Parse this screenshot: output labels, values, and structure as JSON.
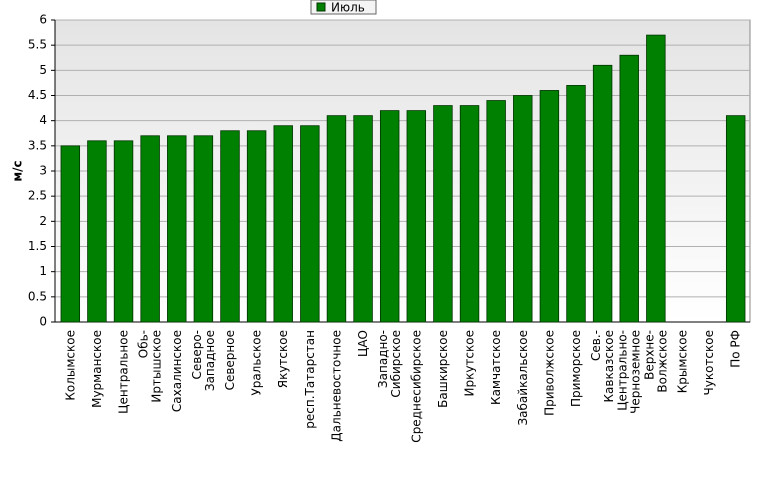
{
  "chart_data": {
    "type": "bar",
    "y_label": "м/с",
    "categories": [
      "Колымское",
      "Мурманское",
      "Центральное",
      "Обь-Иртышское",
      "Сахалинское",
      "Северо-Западное",
      "Северное",
      "Уральское",
      "Якутское",
      "респ.Татарстан",
      "Дальневосточное",
      "ЦАО",
      "Западно-Сибирское",
      "Среднесибирское",
      "Башкирское",
      "Иркутское",
      "Камчатское",
      "Забайкальское",
      "Приволжское",
      "Приморское",
      "Сев.-Кавказское",
      "Центрально-Черноземное",
      "Верхне-Волжское",
      "Крымское",
      "Чукотское",
      "По РФ"
    ],
    "series": [
      {
        "name": "Июль",
        "color": "#008000",
        "values": [
          3.5,
          3.6,
          3.6,
          3.7,
          3.7,
          3.7,
          3.8,
          3.8,
          3.9,
          3.9,
          4.1,
          4.1,
          4.2,
          4.2,
          4.3,
          4.3,
          4.4,
          4.5,
          4.6,
          4.7,
          5.1,
          5.3,
          5.7,
          null,
          null,
          4.1
        ]
      }
    ],
    "ylim": [
      0,
      6
    ],
    "yticks": [
      0,
      0.5,
      1,
      1.5,
      2,
      2.5,
      3,
      3.5,
      4,
      4.5,
      5,
      5.5,
      6
    ],
    "grid": true,
    "legend": "top"
  }
}
